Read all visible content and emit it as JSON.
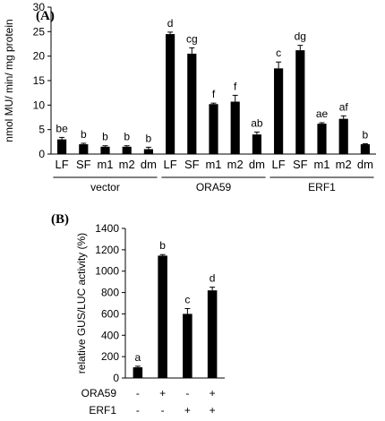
{
  "figure": {
    "panel_a_label": "(A)",
    "panel_b_label": "(B)"
  },
  "chart_data": [
    {
      "type": "bar",
      "panel": "(A)",
      "ylabel": "nmol MU/ min/ mg protein",
      "ylim": [
        0,
        30
      ],
      "yticks": [
        0,
        5,
        10,
        15,
        20,
        25,
        30
      ],
      "grid": false,
      "bar_color": "#000000",
      "categories": [
        "LF",
        "SF",
        "m1",
        "m2",
        "dm",
        "LF",
        "SF",
        "m1",
        "m2",
        "dm",
        "LF",
        "SF",
        "m1",
        "m2",
        "dm"
      ],
      "groups": [
        "vector",
        "vector",
        "vector",
        "vector",
        "vector",
        "ORA59",
        "ORA59",
        "ORA59",
        "ORA59",
        "ORA59",
        "ERF1",
        "ERF1",
        "ERF1",
        "ERF1",
        "ERF1"
      ],
      "group_names": [
        "vector",
        "ORA59",
        "ERF1"
      ],
      "values": [
        3.0,
        2.0,
        1.5,
        1.5,
        1.0,
        24.5,
        20.5,
        10.2,
        10.7,
        4.0,
        17.5,
        21.2,
        6.2,
        7.2,
        2.0
      ],
      "errors": [
        0.4,
        0.2,
        0.2,
        0.2,
        0.4,
        0.4,
        1.2,
        0.2,
        1.3,
        0.5,
        1.3,
        1.0,
        0.2,
        0.6,
        0.1
      ],
      "letters": [
        "be",
        "b",
        "b",
        "b",
        "b",
        "d",
        "cg",
        "f",
        "f",
        "ab",
        "c",
        "dg",
        "ae",
        "af",
        "b"
      ]
    },
    {
      "type": "bar",
      "panel": "(B)",
      "ylabel": "relative GUS/LUC activity (%)",
      "ylim": [
        0,
        1400
      ],
      "yticks": [
        0,
        200,
        400,
        600,
        800,
        1000,
        1200,
        1400
      ],
      "grid": false,
      "bar_color": "#000000",
      "row_labels": [
        "ORA59",
        "ERF1"
      ],
      "rows": [
        [
          "-",
          "+",
          "-",
          "+"
        ],
        [
          "-",
          "-",
          "+",
          "+"
        ]
      ],
      "values": [
        100,
        1145,
        600,
        820
      ],
      "errors": [
        10,
        10,
        50,
        30
      ],
      "letters": [
        "a",
        "b",
        "c",
        "d"
      ]
    }
  ]
}
